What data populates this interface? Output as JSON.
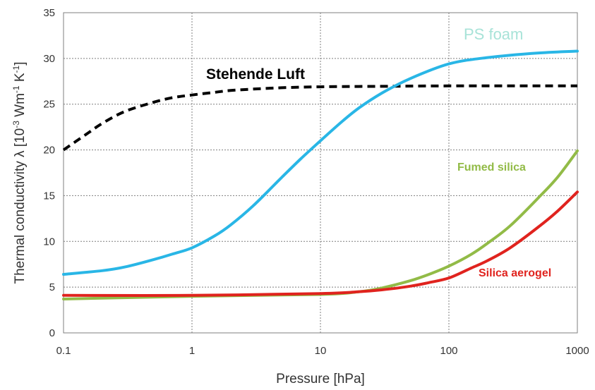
{
  "chart_data": {
    "type": "line",
    "title": "",
    "xlabel": "Pressure [hPa]",
    "ylabel_main": "Thermal  conductivity  λ [10",
    "ylabel_sup1": "-3",
    "ylabel_mid": " Wm",
    "ylabel_sup2": "-1",
    "ylabel_k": " K",
    "ylabel_sup3": "-1",
    "ylabel_end": "]",
    "x_scale": "log",
    "xlim": [
      0.1,
      1000
    ],
    "ylim": [
      0,
      35
    ],
    "x_ticks": [
      0.1,
      1,
      10,
      100,
      1000
    ],
    "x_tick_labels": [
      "0.1",
      "1",
      "10",
      "100",
      "1000"
    ],
    "y_ticks": [
      0,
      5,
      10,
      15,
      20,
      25,
      30,
      35
    ],
    "y_tick_labels": [
      "0",
      "5",
      "10",
      "15",
      "20",
      "25",
      "30",
      "35"
    ],
    "grid": true,
    "series": [
      {
        "name": "Stehende Luft",
        "color": "#000000",
        "style": "dashed",
        "x": [
          0.1,
          0.15,
          0.2,
          0.3,
          0.5,
          0.7,
          1,
          1.5,
          2,
          3,
          5,
          10,
          30,
          100,
          1000
        ],
        "y": [
          20,
          21.7,
          22.9,
          24.2,
          25.2,
          25.7,
          26,
          26.3,
          26.5,
          26.65,
          26.8,
          26.9,
          26.95,
          27,
          27
        ]
      },
      {
        "name": "PS foam",
        "color": "#29b6e6",
        "style": "solid",
        "x": [
          0.1,
          0.2,
          0.3,
          0.5,
          0.7,
          1,
          1.5,
          2,
          3,
          5,
          7,
          10,
          15,
          20,
          30,
          50,
          100,
          200,
          500,
          1000
        ],
        "y": [
          6.4,
          6.8,
          7.2,
          8.0,
          8.6,
          9.3,
          10.6,
          11.8,
          13.9,
          17.0,
          19.0,
          21.0,
          23.2,
          24.6,
          26.2,
          27.8,
          29.4,
          30.1,
          30.6,
          30.8
        ]
      },
      {
        "name": "Fumed silica",
        "color": "#92bb47",
        "style": "solid",
        "x": [
          0.1,
          1,
          10,
          20,
          30,
          50,
          70,
          100,
          150,
          200,
          300,
          500,
          700,
          1000
        ],
        "y": [
          3.7,
          4.0,
          4.2,
          4.5,
          4.9,
          5.7,
          6.4,
          7.3,
          8.6,
          9.8,
          11.7,
          14.8,
          17.0,
          19.9
        ]
      },
      {
        "name": "Silica aerogel",
        "color": "#e0231e",
        "style": "solid",
        "x": [
          0.1,
          1,
          10,
          20,
          30,
          50,
          70,
          100,
          150,
          200,
          300,
          500,
          700,
          1000
        ],
        "y": [
          4.1,
          4.1,
          4.3,
          4.5,
          4.7,
          5.1,
          5.5,
          6.0,
          7.1,
          7.9,
          9.3,
          11.6,
          13.3,
          15.4
        ]
      }
    ],
    "annotations": [
      {
        "text": "Stehende Luft",
        "color": "#000000"
      },
      {
        "text": "PS foam",
        "color": "#a8e3d8"
      },
      {
        "text": "Fumed silica",
        "color": "#92bb47"
      },
      {
        "text": "Silica aerogel",
        "color": "#e0231e"
      }
    ]
  }
}
